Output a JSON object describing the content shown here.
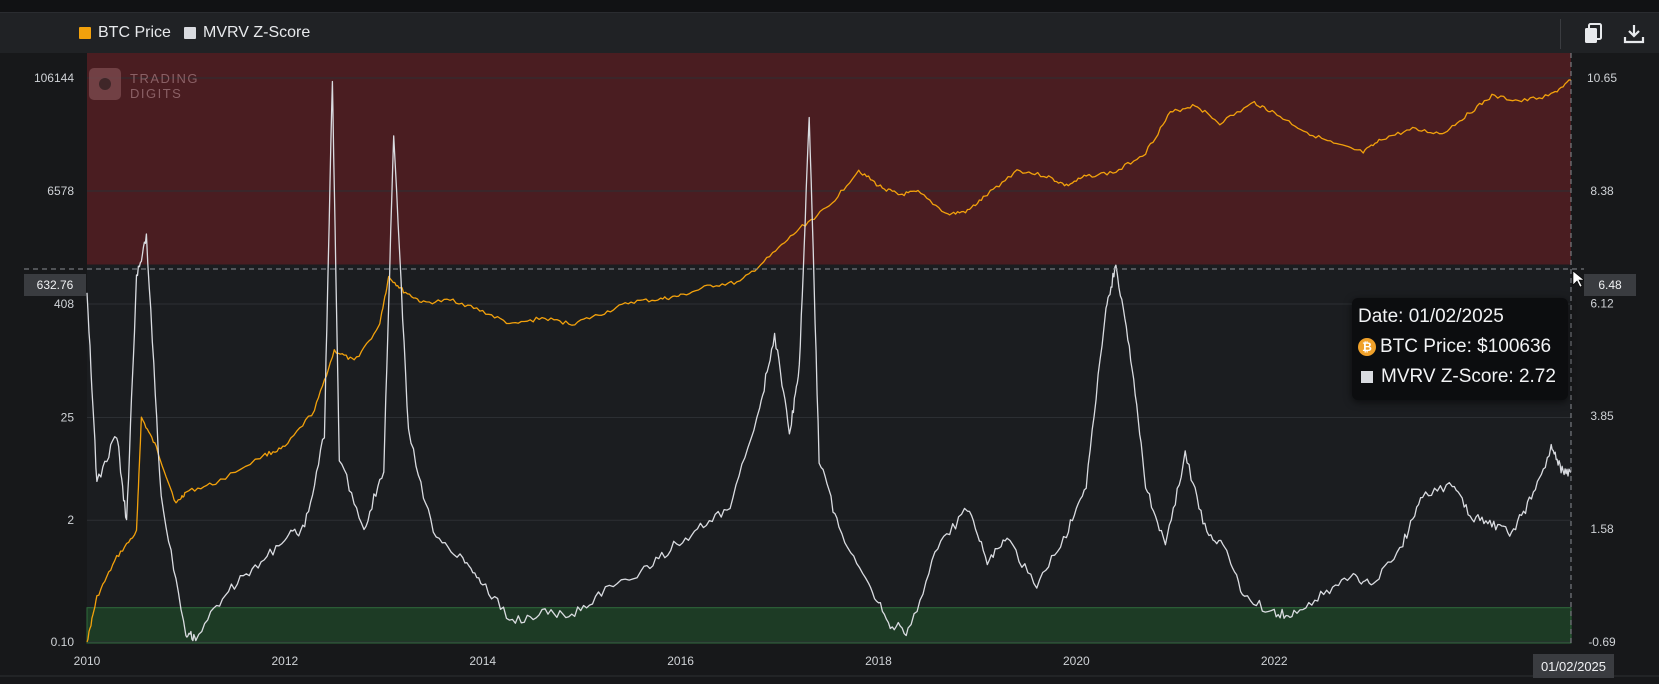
{
  "legend": {
    "items": [
      {
        "label": "BTC Price",
        "color": "#f2a10c"
      },
      {
        "label": "MVRV Z-Score",
        "color": "#d9dbe0"
      }
    ]
  },
  "toolbar": {
    "copy_icon": "copy-icon",
    "download_icon": "download-icon"
  },
  "watermark": {
    "line1": "TRADING",
    "line2": "DIGITS"
  },
  "crosshair": {
    "left_value": "632.76",
    "right_value": "6.48",
    "date": "01/02/2025"
  },
  "tooltip": {
    "date_line": "Date: 01/02/2025",
    "btc_line": "BTC Price: $100636",
    "mvrv_line": "MVRV Z-Score: 2.72"
  },
  "colors": {
    "btc": "#f2a10c",
    "mvrv": "#d9dbe0",
    "red_zone": "#4a1d21",
    "green_zone": "#1d3b25",
    "plot_bg": "#1b1d20"
  },
  "chart_data": {
    "type": "line",
    "x_ticks": [
      "2010",
      "2012",
      "2014",
      "2016",
      "2018",
      "2020",
      "2022"
    ],
    "x_range": [
      2010.0,
      2025.0
    ],
    "y_left_ticks": [
      106144,
      6578,
      408,
      25,
      2,
      0.1
    ],
    "y_left_scale": "log",
    "y_right_ticks": [
      10.65,
      8.38,
      6.12,
      3.85,
      1.58,
      -0.69
    ],
    "y_right_range": [
      -0.69,
      10.65
    ],
    "zones": [
      {
        "name": "red",
        "from": 6.9,
        "to": 10.65
      },
      {
        "name": "green",
        "from": -0.69,
        "to": 0.0
      }
    ],
    "series": [
      {
        "name": "BTC Price",
        "axis": "left",
        "points": [
          [
            2010.0,
            0.1
          ],
          [
            2010.1,
            0.3
          ],
          [
            2010.3,
            0.8
          ],
          [
            2010.5,
            1.5
          ],
          [
            2010.55,
            25
          ],
          [
            2010.7,
            12
          ],
          [
            2010.9,
            3
          ],
          [
            2011.0,
            4
          ],
          [
            2011.3,
            5
          ],
          [
            2011.8,
            10
          ],
          [
            2012.0,
            12
          ],
          [
            2012.3,
            30
          ],
          [
            2012.5,
            130
          ],
          [
            2012.7,
            100
          ],
          [
            2012.95,
            230
          ],
          [
            2013.05,
            800
          ],
          [
            2013.2,
            560
          ],
          [
            2013.4,
            420
          ],
          [
            2013.7,
            450
          ],
          [
            2014.0,
            340
          ],
          [
            2014.3,
            245
          ],
          [
            2014.6,
            290
          ],
          [
            2014.9,
            250
          ],
          [
            2015.2,
            320
          ],
          [
            2015.5,
            430
          ],
          [
            2015.8,
            460
          ],
          [
            2016.0,
            500
          ],
          [
            2016.3,
            640
          ],
          [
            2016.6,
            700
          ],
          [
            2016.9,
            1300
          ],
          [
            2017.2,
            2600
          ],
          [
            2017.5,
            4500
          ],
          [
            2017.8,
            11000
          ],
          [
            2018.0,
            7500
          ],
          [
            2018.2,
            6000
          ],
          [
            2018.4,
            6400
          ],
          [
            2018.7,
            3700
          ],
          [
            2018.9,
            4000
          ],
          [
            2019.1,
            6000
          ],
          [
            2019.4,
            11000
          ],
          [
            2019.7,
            9500
          ],
          [
            2019.9,
            7500
          ],
          [
            2020.1,
            9500
          ],
          [
            2020.4,
            10500
          ],
          [
            2020.7,
            17000
          ],
          [
            2020.95,
            45000
          ],
          [
            2021.2,
            55000
          ],
          [
            2021.45,
            35000
          ],
          [
            2021.8,
            58000
          ],
          [
            2022.0,
            45000
          ],
          [
            2022.3,
            29000
          ],
          [
            2022.6,
            21000
          ],
          [
            2022.9,
            17000
          ],
          [
            2023.1,
            24000
          ],
          [
            2023.4,
            30000
          ],
          [
            2023.7,
            27000
          ],
          [
            2023.95,
            43000
          ],
          [
            2024.2,
            68000
          ],
          [
            2024.5,
            60000
          ],
          [
            2024.8,
            70000
          ],
          [
            2025.0,
            100636
          ]
        ]
      },
      {
        "name": "MVRV Z-Score",
        "axis": "right",
        "points": [
          [
            2010.0,
            6.4
          ],
          [
            2010.1,
            2.5
          ],
          [
            2010.3,
            3.5
          ],
          [
            2010.4,
            1.7
          ],
          [
            2010.5,
            6.6
          ],
          [
            2010.6,
            7.5
          ],
          [
            2010.75,
            2.2
          ],
          [
            2011.0,
            -0.5
          ],
          [
            2011.1,
            -0.6
          ],
          [
            2011.4,
            0.3
          ],
          [
            2011.7,
            0.8
          ],
          [
            2012.0,
            1.4
          ],
          [
            2012.2,
            1.6
          ],
          [
            2012.4,
            3.5
          ],
          [
            2012.48,
            10.65
          ],
          [
            2012.55,
            3.0
          ],
          [
            2012.8,
            1.6
          ],
          [
            2013.0,
            2.8
          ],
          [
            2013.1,
            9.5
          ],
          [
            2013.25,
            3.5
          ],
          [
            2013.5,
            1.5
          ],
          [
            2013.8,
            1.0
          ],
          [
            2014.0,
            0.5
          ],
          [
            2014.3,
            -0.3
          ],
          [
            2014.6,
            -0.1
          ],
          [
            2014.9,
            -0.15
          ],
          [
            2015.2,
            0.3
          ],
          [
            2015.6,
            0.7
          ],
          [
            2015.9,
            1.2
          ],
          [
            2016.2,
            1.6
          ],
          [
            2016.5,
            2.0
          ],
          [
            2016.8,
            4.0
          ],
          [
            2016.95,
            5.5
          ],
          [
            2017.1,
            3.5
          ],
          [
            2017.2,
            4.8
          ],
          [
            2017.3,
            9.9
          ],
          [
            2017.4,
            3.0
          ],
          [
            2017.6,
            1.6
          ],
          [
            2017.9,
            0.5
          ],
          [
            2018.1,
            -0.3
          ],
          [
            2018.3,
            -0.5
          ],
          [
            2018.6,
            1.2
          ],
          [
            2018.9,
            2.0
          ],
          [
            2019.1,
            0.9
          ],
          [
            2019.3,
            1.4
          ],
          [
            2019.6,
            0.4
          ],
          [
            2019.9,
            1.5
          ],
          [
            2020.1,
            2.5
          ],
          [
            2020.3,
            6.0
          ],
          [
            2020.4,
            6.9
          ],
          [
            2020.55,
            5.0
          ],
          [
            2020.7,
            2.5
          ],
          [
            2020.9,
            1.2
          ],
          [
            2021.1,
            3.1
          ],
          [
            2021.3,
            1.6
          ],
          [
            2021.5,
            1.2
          ],
          [
            2021.7,
            0.2
          ],
          [
            2022.0,
            -0.1
          ],
          [
            2022.2,
            -0.15
          ],
          [
            2022.5,
            0.3
          ],
          [
            2022.8,
            0.6
          ],
          [
            2023.0,
            0.5
          ],
          [
            2023.3,
            1.3
          ],
          [
            2023.5,
            2.2
          ],
          [
            2023.8,
            2.5
          ],
          [
            2024.0,
            1.8
          ],
          [
            2024.2,
            1.7
          ],
          [
            2024.4,
            1.5
          ],
          [
            2024.6,
            2.2
          ],
          [
            2024.8,
            3.2
          ],
          [
            2024.9,
            2.8
          ],
          [
            2025.0,
            2.72
          ]
        ]
      }
    ]
  }
}
